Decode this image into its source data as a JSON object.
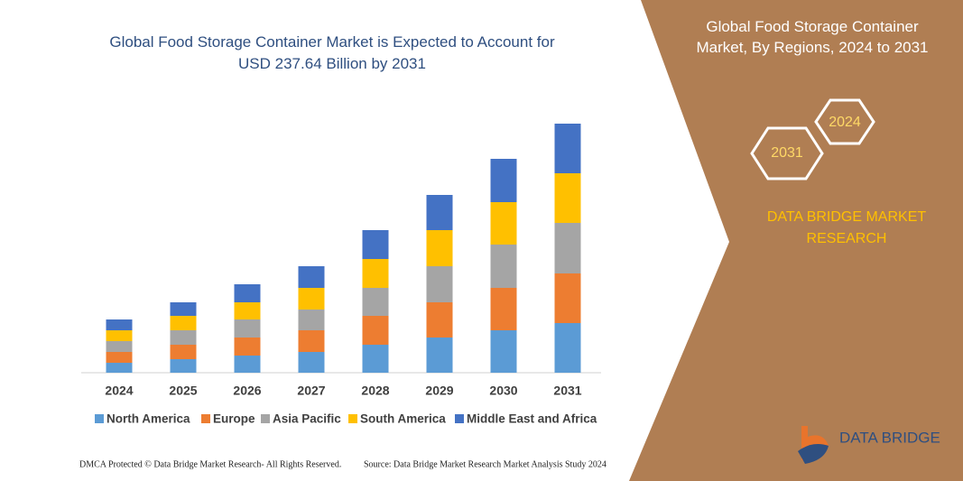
{
  "chart_data": {
    "type": "stacked-bar",
    "title": "Global Food Storage Container Market is Expected to Account for USD 237.64 Billion by 2031",
    "categories": [
      "2024",
      "2025",
      "2026",
      "2027",
      "2028",
      "2029",
      "2030",
      "2031"
    ],
    "series": [
      {
        "name": "North America",
        "color": "#5b9bd5",
        "values": [
          11,
          15,
          19,
          23,
          31,
          39,
          47,
          55
        ]
      },
      {
        "name": "Europe",
        "color": "#ed7d31",
        "values": [
          12,
          16,
          20,
          24,
          32,
          39,
          47,
          55
        ]
      },
      {
        "name": "Asia Pacific",
        "color": "#a5a5a5",
        "values": [
          12,
          16,
          20,
          23,
          31,
          40,
          48,
          56
        ]
      },
      {
        "name": "South America",
        "color": "#ffc000",
        "values": [
          12,
          16,
          19,
          24,
          32,
          40,
          47,
          55
        ]
      },
      {
        "name": "Middle East and Africa",
        "color": "#4472c4",
        "values": [
          12,
          15,
          20,
          24,
          32,
          39,
          48,
          55
        ]
      }
    ]
  },
  "panel": {
    "title": "Global Food Storage Container Market, By Regions, 2024 to 2031",
    "hex_start": "2024",
    "hex_end": "2031",
    "brand": "DATA BRIDGE MARKET RESEARCH",
    "logo": "DATA BRIDGE"
  },
  "footer": {
    "left": "DMCA Protected © Data Bridge Market Research- All Rights Reserved.",
    "right": "Source: Data Bridge Market Research Market Analysis Study 2024"
  }
}
